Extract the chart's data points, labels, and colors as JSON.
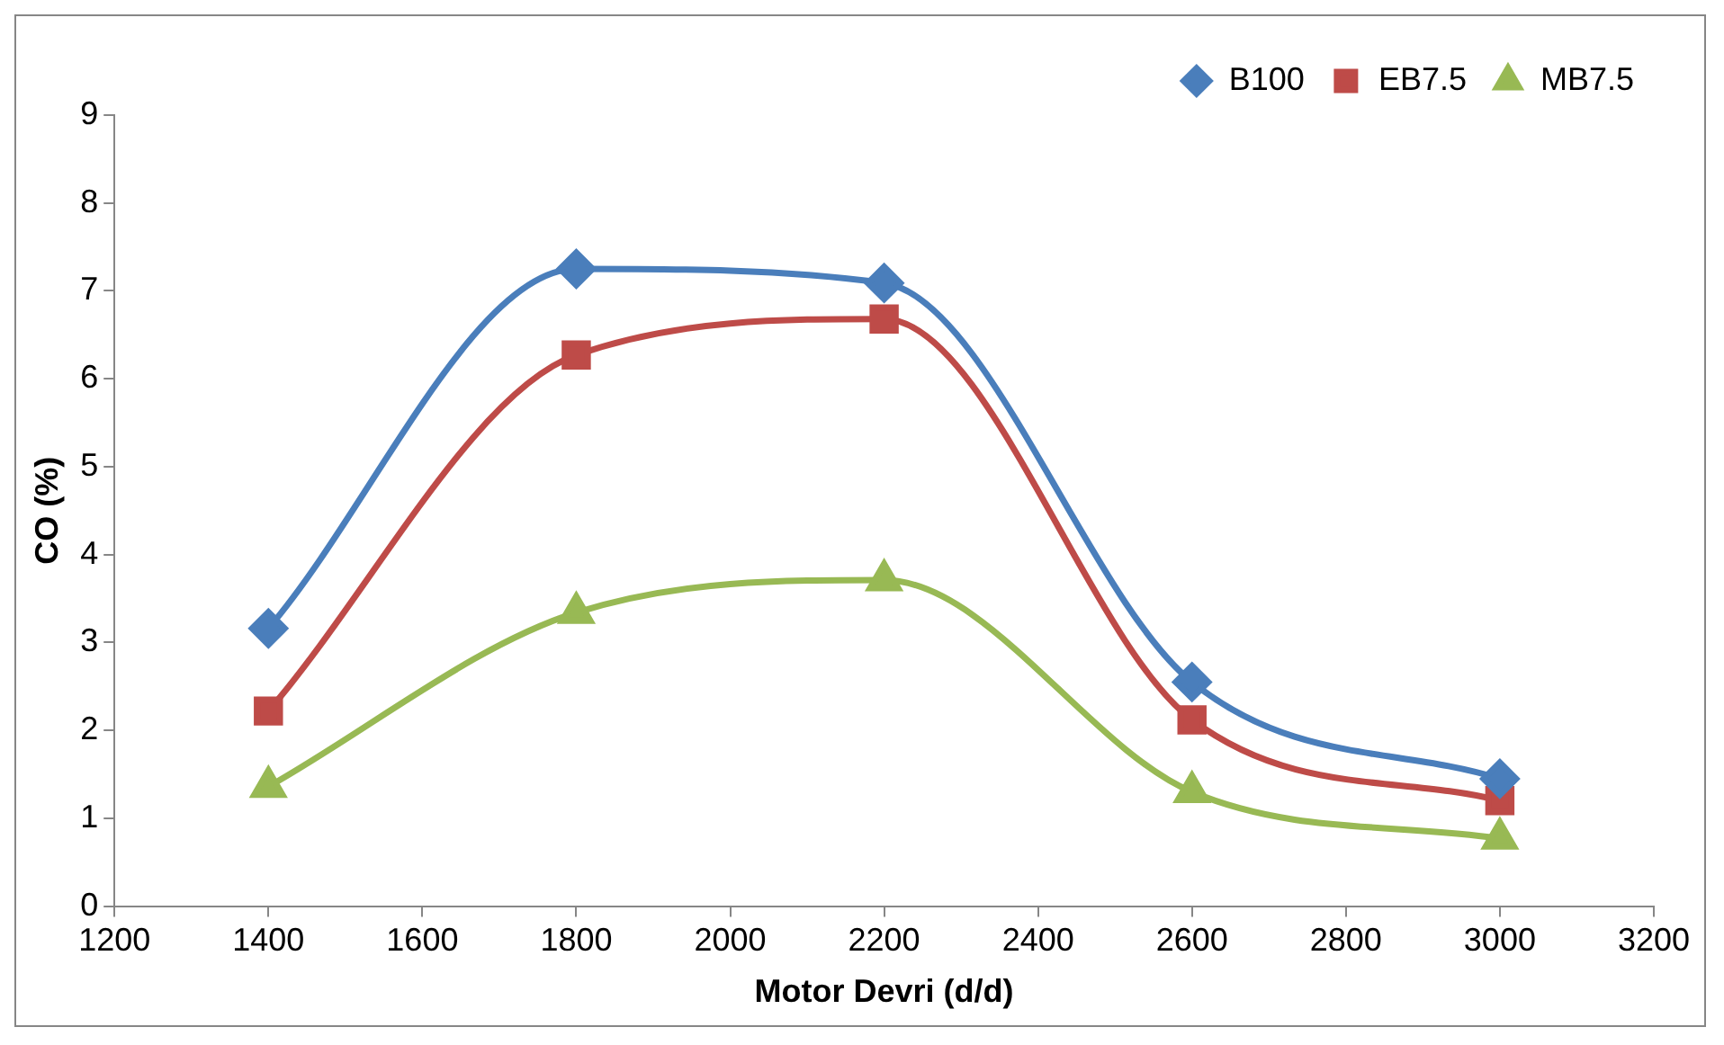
{
  "chart_data": {
    "type": "line",
    "xlabel": "Motor Devri (d/d)",
    "ylabel": "CO (%)",
    "x": [
      1400,
      1800,
      2200,
      2600,
      3000
    ],
    "series": [
      {
        "name": "B100",
        "color": "#4a7ebb",
        "marker": "diamond",
        "values": [
          3.16,
          7.25,
          7.09,
          2.55,
          1.45
        ]
      },
      {
        "name": "EB7.5",
        "color": "#be4b48",
        "marker": "square",
        "values": [
          2.22,
          6.27,
          6.68,
          2.12,
          1.2
        ]
      },
      {
        "name": "MB7.5",
        "color": "#98b954",
        "marker": "triangle",
        "values": [
          1.36,
          3.34,
          3.71,
          1.3,
          0.77
        ]
      }
    ],
    "xlim": [
      1200,
      3200
    ],
    "xticks": [
      1200,
      1400,
      1600,
      1800,
      2000,
      2200,
      2400,
      2600,
      2800,
      3000,
      3200
    ],
    "ylim": [
      0,
      9
    ],
    "yticks": [
      0,
      1,
      2,
      3,
      4,
      5,
      6,
      7,
      8,
      9
    ],
    "grid": false,
    "legend": "top right",
    "line_style": "solid"
  }
}
